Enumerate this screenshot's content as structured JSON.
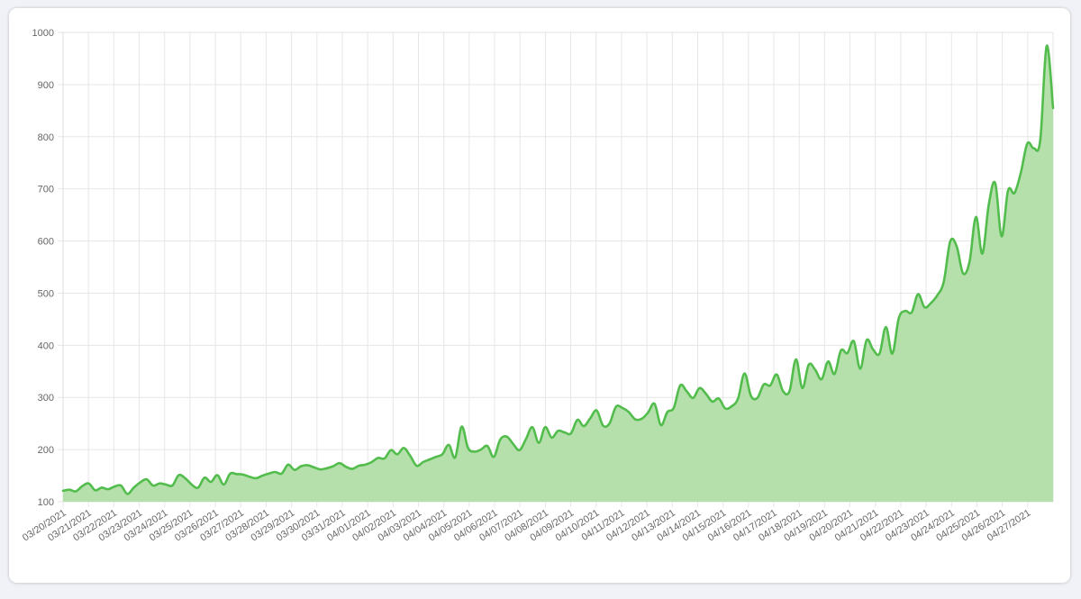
{
  "chart_data": {
    "type": "area",
    "title": "",
    "xlabel": "",
    "ylabel": "",
    "ylim": [
      100,
      1000
    ],
    "yticks": [
      100,
      200,
      300,
      400,
      500,
      600,
      700,
      800,
      900,
      1000
    ],
    "grid": true,
    "legend": "none",
    "colors": {
      "line": "#52bd4c",
      "fill": "#b5e0ac",
      "grid": "#e6e6e6",
      "tick_text": "#666666"
    },
    "x_tick_labels": [
      "03/20/2021",
      "03/21/2021",
      "03/22/2021",
      "03/23/2021",
      "03/24/2021",
      "03/25/2021",
      "03/26/2021",
      "03/27/2021",
      "03/28/2021",
      "03/29/2021",
      "03/30/2021",
      "03/31/2021",
      "04/01/2021",
      "04/02/2021",
      "04/03/2021",
      "04/04/2021",
      "04/05/2021",
      "04/06/2021",
      "04/07/2021",
      "04/08/2021",
      "04/09/2021",
      "04/10/2021",
      "04/11/2021",
      "04/12/2021",
      "04/13/2021",
      "04/14/2021",
      "04/15/2021",
      "04/16/2021",
      "04/17/2021",
      "04/18/2021",
      "04/19/2021",
      "04/20/2021",
      "04/21/2021",
      "04/22/2021",
      "04/23/2021",
      "04/24/2021",
      "04/25/2021",
      "04/26/2021",
      "04/27/2021"
    ],
    "series": [
      {
        "values": [
          121,
          123,
          120,
          130,
          135,
          122,
          127,
          124,
          129,
          131,
          115,
          127,
          137,
          143,
          131,
          135,
          133,
          131,
          151,
          145,
          133,
          127,
          146,
          138,
          151,
          133,
          154,
          153,
          152,
          148,
          145,
          150,
          154,
          157,
          154,
          171,
          161,
          168,
          170,
          166,
          162,
          164,
          168,
          174,
          167,
          163,
          169,
          171,
          176,
          184,
          183,
          199,
          191,
          203,
          188,
          169,
          176,
          181,
          186,
          191,
          209,
          185,
          244,
          203,
          196,
          200,
          207,
          186,
          219,
          225,
          211,
          199,
          220,
          243,
          213,
          243,
          223,
          236,
          233,
          231,
          257,
          245,
          260,
          275,
          246,
          250,
          282,
          280,
          272,
          258,
          259,
          271,
          288,
          247,
          272,
          280,
          323,
          312,
          299,
          318,
          307,
          292,
          298,
          279,
          283,
          298,
          346,
          303,
          299,
          325,
          323,
          344,
          312,
          312,
          373,
          318,
          363,
          353,
          335,
          369,
          345,
          390,
          385,
          408,
          355,
          410,
          392,
          384,
          435,
          384,
          452,
          466,
          463,
          498,
          473,
          481,
          496,
          522,
          599,
          590,
          538,
          560,
          646,
          576,
          670,
          711,
          609,
          697,
          692,
          732,
          787,
          778,
          793,
          974,
          855
        ]
      }
    ]
  }
}
